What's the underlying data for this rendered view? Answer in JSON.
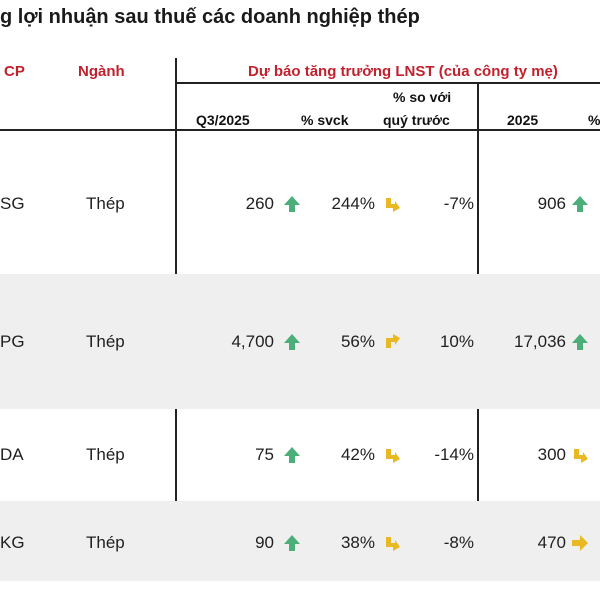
{
  "title": "g lợi nhuận sau thuế các doanh nghiệp thép",
  "header": {
    "col_code": "CP",
    "col_sector": "Ngành",
    "group": "Dự báo tăng trưởng LNST (của công ty mẹ)",
    "sub_q": "Q3/2025",
    "sub_yoy": "% svck",
    "sub_qoq_line1": "% so với",
    "sub_qoq_line2": "quý trước",
    "sub_year": "2025",
    "sub_cut": "%"
  },
  "colors": {
    "header_red": "#c0212d",
    "up_green": "#4caf7a",
    "down_yellow": "#e8b923",
    "shade": "#efefef"
  },
  "rows": [
    {
      "code": "SG",
      "sector": "Thép",
      "q3": "260",
      "q3_icon": "arrow-up-icon",
      "yoy": "244%",
      "yoy_icon": "arrow-down-right-icon",
      "qoq": "-7%",
      "y2025": "906",
      "y2025_icon": "arrow-up-icon"
    },
    {
      "code": "PG",
      "sector": "Thép",
      "q3": "4,700",
      "q3_icon": "arrow-up-icon",
      "yoy": "56%",
      "yoy_icon": "arrow-up-right-icon",
      "qoq": "10%",
      "y2025": "17,036",
      "y2025_icon": "arrow-up-icon"
    },
    {
      "code": "DA",
      "sector": "Thép",
      "q3": "75",
      "q3_icon": "arrow-up-icon",
      "yoy": "42%",
      "yoy_icon": "arrow-down-right-icon",
      "qoq": "-14%",
      "y2025": "300",
      "y2025_icon": "arrow-down-right-icon"
    },
    {
      "code": "KG",
      "sector": "Thép",
      "q3": "90",
      "q3_icon": "arrow-up-icon",
      "yoy": "38%",
      "yoy_icon": "arrow-down-right-icon",
      "qoq": "-8%",
      "y2025": "470",
      "y2025_icon": "arrow-right-icon"
    }
  ]
}
